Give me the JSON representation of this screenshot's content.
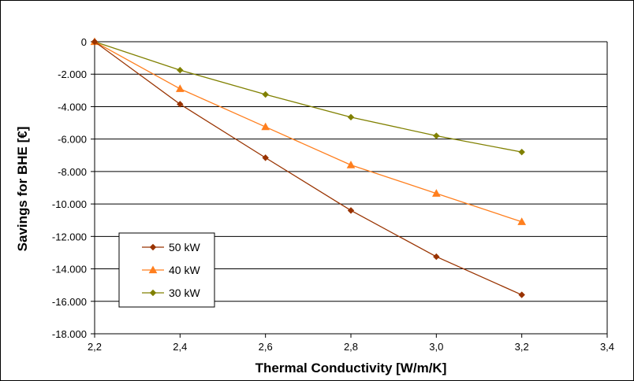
{
  "chart_data": {
    "type": "line",
    "title": "",
    "xlabel": "Thermal Conductivity [W/m/K]",
    "ylabel": "Savings for BHE [€]",
    "xlim": [
      2.2,
      3.4
    ],
    "ylim": [
      -18000,
      0
    ],
    "x_ticks": [
      2.2,
      2.4,
      2.6,
      2.8,
      3.0,
      3.2,
      3.4
    ],
    "x_tick_labels": [
      "2,2",
      "2,4",
      "2,6",
      "2,8",
      "3,0",
      "3,2",
      "3,4"
    ],
    "y_ticks": [
      0,
      -2000,
      -4000,
      -6000,
      -8000,
      -10000,
      -12000,
      -14000,
      -16000,
      -18000
    ],
    "y_tick_labels": [
      "0",
      "-2.000",
      "-4.000",
      "-6.000",
      "-8.000",
      "-10.000",
      "-12.000",
      "-14.000",
      "-16.000",
      "-18.000"
    ],
    "grid": "horizontal",
    "legend_position": "bottom-left",
    "x": [
      2.2,
      2.4,
      2.6,
      2.8,
      3.0,
      3.2
    ],
    "series": [
      {
        "name": "50 kW",
        "color": "#993300",
        "marker": "diamond",
        "values": [
          0,
          -3850,
          -7150,
          -10400,
          -13250,
          -15600
        ]
      },
      {
        "name": "40 kW",
        "color": "#ff7f1e",
        "marker": "triangle",
        "values": [
          0,
          -2900,
          -5250,
          -7600,
          -9350,
          -11100
        ]
      },
      {
        "name": "30 kW",
        "color": "#808000",
        "marker": "diamond",
        "values": [
          0,
          -1750,
          -3250,
          -4650,
          -5800,
          -6800
        ]
      }
    ]
  }
}
